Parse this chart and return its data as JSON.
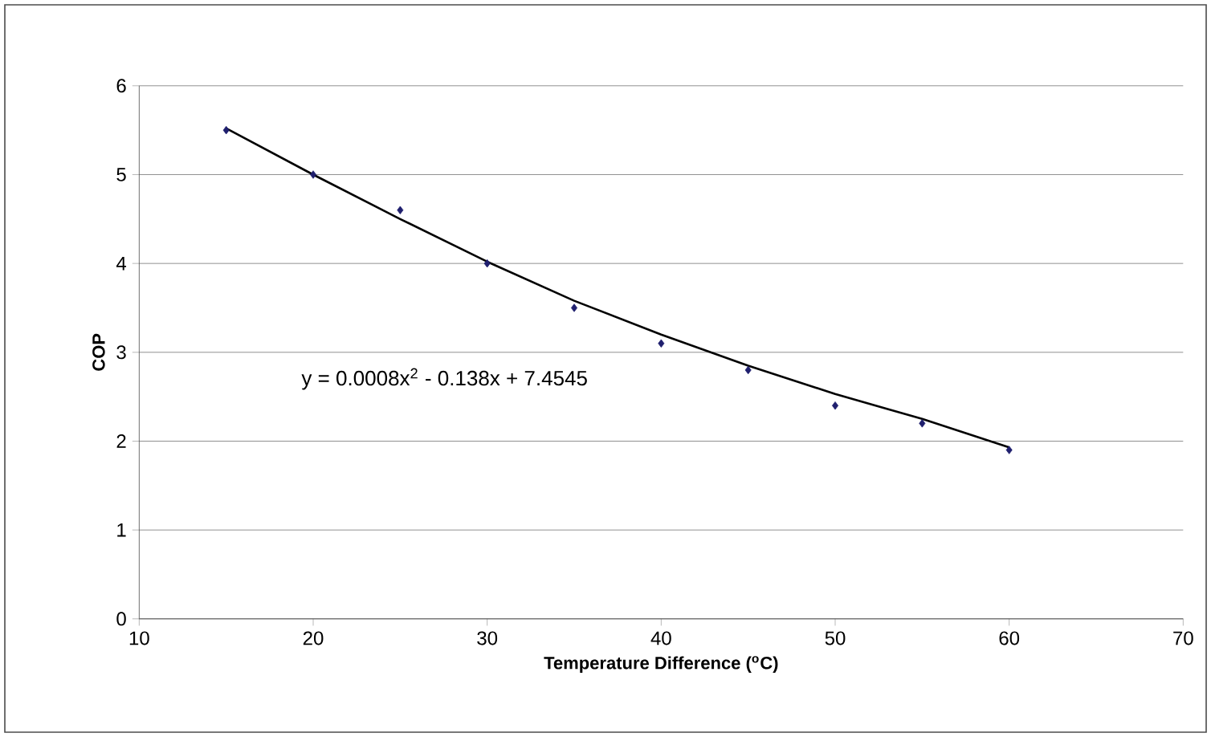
{
  "chart_data": {
    "type": "scatter",
    "xlabel": "Temperature Difference ($^{o}$C)",
    "ylabel": "COP",
    "annotations": [
      "y = 0.0008x$^{2}$ - 0.138x + 7.4545"
    ],
    "series": [
      {
        "color": "#1f1f6e",
        "marker": "diamond",
        "x": [
          15,
          20,
          25,
          30,
          35,
          40,
          45,
          50,
          55,
          60
        ],
        "values": [
          5.5,
          5.0,
          4.6,
          4.0,
          3.5,
          3.1,
          2.8,
          2.4,
          2.2,
          1.9
        ]
      },
      {
        "type": "line",
        "color": "#000000",
        "marker": "none",
        "line_style": "solid",
        "x": [
          15,
          20,
          25,
          30,
          35,
          40,
          45,
          50,
          55,
          60
        ],
        "values": [
          5.52,
          5.0,
          4.5,
          4.02,
          3.58,
          3.2,
          2.85,
          2.53,
          2.25,
          1.93
        ]
      }
    ],
    "xlim": [
      10,
      70
    ],
    "ylim": [
      0,
      6
    ],
    "xticks": [
      10,
      20,
      30,
      40,
      50,
      60,
      70
    ],
    "yticks": [
      0,
      1,
      2,
      3,
      4,
      5,
      6
    ],
    "grid": "y"
  }
}
